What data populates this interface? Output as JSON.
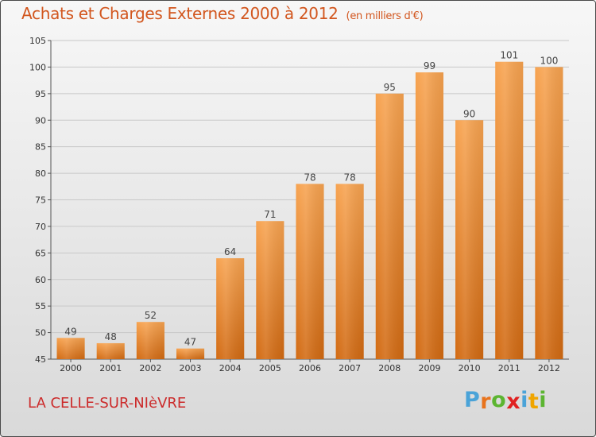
{
  "header": {
    "title": "Achats et Charges Externes 2000 à 2012",
    "unit": "(en milliers d'€)"
  },
  "footer": {
    "city": "LA CELLE-SUR-NIèVRE",
    "logo_letters": [
      "P",
      "r",
      "o",
      "x",
      "i",
      "t",
      "i"
    ],
    "logo_colors": [
      "#4aa3d8",
      "#e8731c",
      "#5cb531",
      "#e02020",
      "#4aa3d8",
      "#f0a500",
      "#5cb531"
    ]
  },
  "colors": {
    "bar_top": "#f7a350",
    "bar_bottom": "#d26a12",
    "title": "#d2561e",
    "city": "#cc2b2b",
    "grid": "#c8c8c8"
  },
  "chart_data": {
    "type": "bar",
    "title": "Achats et Charges Externes 2000 à 2012",
    "subtitle": "(en milliers d'€)",
    "xlabel": "",
    "ylabel": "",
    "categories": [
      "2000",
      "2001",
      "2002",
      "2003",
      "2004",
      "2005",
      "2006",
      "2007",
      "2008",
      "2009",
      "2010",
      "2011",
      "2012"
    ],
    "values": [
      49,
      48,
      52,
      47,
      64,
      71,
      78,
      78,
      95,
      99,
      90,
      101,
      100
    ],
    "ylim": [
      45,
      105
    ],
    "yticks": [
      45,
      50,
      55,
      60,
      65,
      70,
      75,
      80,
      85,
      90,
      95,
      100,
      105
    ],
    "grid": true,
    "legend": "none"
  }
}
